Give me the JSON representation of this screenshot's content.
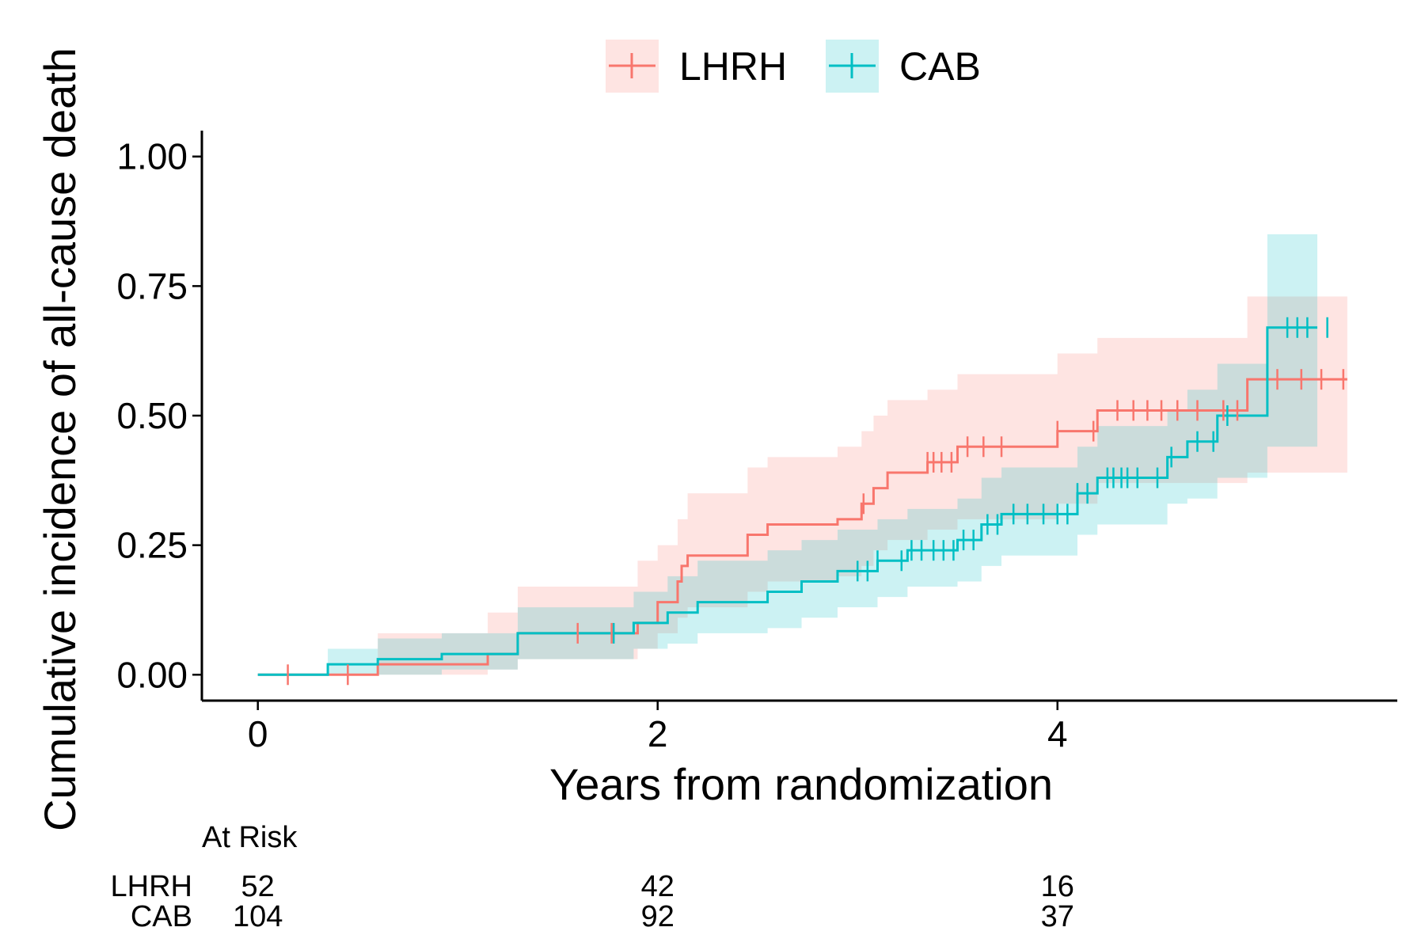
{
  "chart_data": {
    "type": "line",
    "title": "",
    "xlabel": "Years from randomization",
    "ylabel": "Cumulative incidence of all-cause death",
    "xlim": [
      -0.28,
      5.7
    ],
    "ylim": [
      -0.05,
      1.05
    ],
    "xticks": [
      0,
      2,
      4
    ],
    "yticks": [
      "0.00",
      "0.25",
      "0.50",
      "0.75",
      "1.00"
    ],
    "legend_position": "top",
    "grid": false,
    "series": [
      {
        "name": "LHRH",
        "color": "#F8766D",
        "band_color": "#FDE0DD",
        "steps": [
          [
            0.0,
            0.0
          ],
          [
            0.6,
            0.02
          ],
          [
            1.15,
            0.04
          ],
          [
            1.3,
            0.08
          ],
          [
            1.9,
            0.1
          ],
          [
            2.0,
            0.14
          ],
          [
            2.1,
            0.18
          ],
          [
            2.12,
            0.21
          ],
          [
            2.15,
            0.23
          ],
          [
            2.45,
            0.27
          ],
          [
            2.55,
            0.29
          ],
          [
            2.9,
            0.3
          ],
          [
            3.02,
            0.33
          ],
          [
            3.08,
            0.36
          ],
          [
            3.15,
            0.39
          ],
          [
            3.35,
            0.41
          ],
          [
            3.5,
            0.44
          ],
          [
            4.0,
            0.47
          ],
          [
            4.2,
            0.51
          ],
          [
            4.95,
            0.57
          ],
          [
            5.45,
            0.57
          ]
        ],
        "lower": [
          [
            0.0,
            0.0
          ],
          [
            0.6,
            0.0
          ],
          [
            1.15,
            0.01
          ],
          [
            1.3,
            0.03
          ],
          [
            1.9,
            0.05
          ],
          [
            2.0,
            0.08
          ],
          [
            2.1,
            0.11
          ],
          [
            2.15,
            0.13
          ],
          [
            2.45,
            0.16
          ],
          [
            2.55,
            0.18
          ],
          [
            2.9,
            0.19
          ],
          [
            3.02,
            0.21
          ],
          [
            3.08,
            0.24
          ],
          [
            3.15,
            0.26
          ],
          [
            3.35,
            0.28
          ],
          [
            3.5,
            0.3
          ],
          [
            4.0,
            0.33
          ],
          [
            4.2,
            0.37
          ],
          [
            4.95,
            0.39
          ],
          [
            5.45,
            0.39
          ]
        ],
        "upper": [
          [
            0.0,
            0.0
          ],
          [
            0.6,
            0.08
          ],
          [
            1.15,
            0.12
          ],
          [
            1.3,
            0.17
          ],
          [
            1.9,
            0.22
          ],
          [
            2.0,
            0.25
          ],
          [
            2.1,
            0.3
          ],
          [
            2.15,
            0.35
          ],
          [
            2.45,
            0.4
          ],
          [
            2.55,
            0.42
          ],
          [
            2.9,
            0.44
          ],
          [
            3.02,
            0.47
          ],
          [
            3.08,
            0.5
          ],
          [
            3.15,
            0.53
          ],
          [
            3.35,
            0.55
          ],
          [
            3.5,
            0.58
          ],
          [
            4.0,
            0.62
          ],
          [
            4.2,
            0.65
          ],
          [
            4.95,
            0.73
          ],
          [
            5.45,
            0.73
          ]
        ],
        "censor_times": [
          0.15,
          0.45,
          1.6,
          1.77,
          3.03,
          3.35,
          3.38,
          3.42,
          3.47,
          3.55,
          3.63,
          3.72,
          4.0,
          4.18,
          4.3,
          4.38,
          4.45,
          4.52,
          4.6,
          4.7,
          4.83,
          4.9,
          5.1,
          5.22,
          5.32,
          5.43
        ]
      },
      {
        "name": "CAB",
        "color": "#00BFC4",
        "band_color": "#CCF2F3",
        "steps": [
          [
            0.0,
            0.0
          ],
          [
            0.35,
            0.02
          ],
          [
            0.6,
            0.03
          ],
          [
            0.92,
            0.04
          ],
          [
            1.3,
            0.08
          ],
          [
            1.88,
            0.1
          ],
          [
            2.05,
            0.12
          ],
          [
            2.2,
            0.14
          ],
          [
            2.55,
            0.16
          ],
          [
            2.72,
            0.18
          ],
          [
            2.9,
            0.2
          ],
          [
            3.1,
            0.22
          ],
          [
            3.25,
            0.24
          ],
          [
            3.5,
            0.26
          ],
          [
            3.62,
            0.29
          ],
          [
            3.72,
            0.31
          ],
          [
            4.1,
            0.35
          ],
          [
            4.2,
            0.38
          ],
          [
            4.55,
            0.42
          ],
          [
            4.65,
            0.45
          ],
          [
            4.8,
            0.5
          ],
          [
            5.05,
            0.67
          ],
          [
            5.3,
            0.67
          ]
        ],
        "lower": [
          [
            0.0,
            0.0
          ],
          [
            0.35,
            0.0
          ],
          [
            0.6,
            0.0
          ],
          [
            0.92,
            0.01
          ],
          [
            1.3,
            0.03
          ],
          [
            1.88,
            0.05
          ],
          [
            2.05,
            0.06
          ],
          [
            2.2,
            0.08
          ],
          [
            2.55,
            0.09
          ],
          [
            2.72,
            0.11
          ],
          [
            2.9,
            0.13
          ],
          [
            3.1,
            0.15
          ],
          [
            3.25,
            0.17
          ],
          [
            3.5,
            0.18
          ],
          [
            3.62,
            0.21
          ],
          [
            3.72,
            0.23
          ],
          [
            4.1,
            0.27
          ],
          [
            4.2,
            0.29
          ],
          [
            4.55,
            0.33
          ],
          [
            4.65,
            0.34
          ],
          [
            4.8,
            0.38
          ],
          [
            5.05,
            0.44
          ],
          [
            5.3,
            0.44
          ]
        ],
        "upper": [
          [
            0.0,
            0.0
          ],
          [
            0.35,
            0.05
          ],
          [
            0.6,
            0.07
          ],
          [
            0.92,
            0.08
          ],
          [
            1.3,
            0.13
          ],
          [
            1.88,
            0.16
          ],
          [
            2.05,
            0.19
          ],
          [
            2.2,
            0.22
          ],
          [
            2.55,
            0.24
          ],
          [
            2.72,
            0.26
          ],
          [
            2.9,
            0.28
          ],
          [
            3.1,
            0.3
          ],
          [
            3.25,
            0.32
          ],
          [
            3.5,
            0.34
          ],
          [
            3.62,
            0.38
          ],
          [
            3.72,
            0.4
          ],
          [
            4.1,
            0.44
          ],
          [
            4.2,
            0.48
          ],
          [
            4.55,
            0.51
          ],
          [
            4.65,
            0.55
          ],
          [
            4.8,
            0.6
          ],
          [
            5.05,
            0.85
          ],
          [
            5.3,
            0.85
          ]
        ],
        "censor_times": [
          1.78,
          3.0,
          3.05,
          3.1,
          3.22,
          3.27,
          3.32,
          3.38,
          3.43,
          3.48,
          3.53,
          3.58,
          3.65,
          3.7,
          3.78,
          3.85,
          3.93,
          4.0,
          4.05,
          4.1,
          4.15,
          4.25,
          4.28,
          4.32,
          4.35,
          4.4,
          4.5,
          4.57,
          4.7,
          4.78,
          4.85,
          5.15,
          5.2,
          5.25,
          5.35
        ]
      }
    ],
    "risk_table": {
      "title": "At Risk",
      "rows": [
        {
          "label": "LHRH",
          "counts": [
            "52",
            "42",
            "16"
          ]
        },
        {
          "label": "CAB",
          "counts": [
            "104",
            "92",
            "37"
          ]
        }
      ]
    }
  }
}
